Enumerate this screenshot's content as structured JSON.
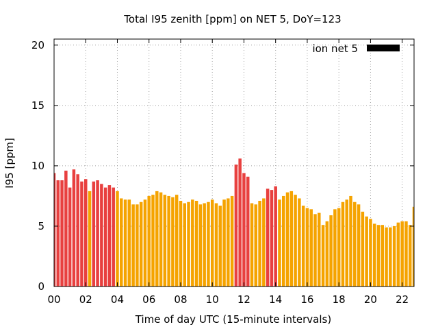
{
  "chart_data": {
    "type": "bar",
    "title": "Total I95 zenith [ppm] on NET 5, DoY=123",
    "xlabel": "Time of day UTC (15-minute intervals)",
    "ylabel": "I95 [ppm]",
    "xlim": [
      0,
      22.75
    ],
    "ylim": [
      0,
      20.5
    ],
    "x_ticks": [
      {
        "value": 0,
        "label": "00"
      },
      {
        "value": 2,
        "label": "02"
      },
      {
        "value": 4,
        "label": "04"
      },
      {
        "value": 6,
        "label": "06"
      },
      {
        "value": 8,
        "label": "08"
      },
      {
        "value": 10,
        "label": "10"
      },
      {
        "value": 12,
        "label": "12"
      },
      {
        "value": 14,
        "label": "14"
      },
      {
        "value": 16,
        "label": "16"
      },
      {
        "value": 18,
        "label": "18"
      },
      {
        "value": 20,
        "label": "20"
      },
      {
        "value": 22,
        "label": "22"
      }
    ],
    "y_ticks": [
      {
        "value": 0,
        "label": "0"
      },
      {
        "value": 5,
        "label": "5"
      },
      {
        "value": 10,
        "label": "10"
      },
      {
        "value": 15,
        "label": "15"
      },
      {
        "value": 20,
        "label": "20"
      }
    ],
    "grid": true,
    "legend": {
      "label": "ion net 5",
      "placement": "top-right",
      "color": "#000000"
    },
    "colors": {
      "high": "#e8403f",
      "normal": "#f5a300"
    },
    "bar_interval_hours": 0.25,
    "values": [
      9.4,
      8.8,
      8.8,
      9.6,
      8.2,
      9.7,
      9.3,
      8.7,
      8.9,
      7.9,
      8.7,
      8.8,
      8.5,
      8.2,
      8.4,
      8.2,
      7.9,
      7.3,
      7.2,
      7.2,
      6.8,
      6.8,
      7.0,
      7.2,
      7.5,
      7.6,
      7.9,
      7.8,
      7.6,
      7.5,
      7.4,
      7.6,
      7.1,
      6.9,
      7.0,
      7.2,
      7.1,
      6.8,
      6.9,
      7.0,
      7.2,
      6.9,
      6.7,
      7.2,
      7.3,
      7.5,
      10.1,
      10.6,
      9.4,
      9.1,
      6.9,
      6.8,
      7.1,
      7.3,
      8.1,
      8.0,
      8.3,
      7.2,
      7.5,
      7.8,
      7.9,
      7.6,
      7.3,
      6.7,
      6.5,
      6.4,
      6.0,
      6.1,
      5.1,
      5.4,
      5.9,
      6.4,
      6.5,
      7.0,
      7.2,
      7.5,
      7.0,
      6.8,
      6.2,
      5.8,
      5.6,
      5.2,
      5.1,
      5.1,
      4.9,
      4.9,
      5.0,
      5.3,
      5.4,
      5.4,
      5.1,
      6.6
    ],
    "status": [
      "high",
      "high",
      "high",
      "high",
      "high",
      "high",
      "high",
      "high",
      "high",
      "normal",
      "high",
      "high",
      "high",
      "high",
      "high",
      "high",
      "normal",
      "normal",
      "normal",
      "normal",
      "normal",
      "normal",
      "normal",
      "normal",
      "normal",
      "normal",
      "normal",
      "normal",
      "normal",
      "normal",
      "normal",
      "normal",
      "normal",
      "normal",
      "normal",
      "normal",
      "normal",
      "normal",
      "normal",
      "normal",
      "normal",
      "normal",
      "normal",
      "normal",
      "normal",
      "normal",
      "high",
      "high",
      "high",
      "high",
      "normal",
      "normal",
      "normal",
      "normal",
      "high",
      "high",
      "high",
      "normal",
      "normal",
      "normal",
      "normal",
      "normal",
      "normal",
      "normal",
      "normal",
      "normal",
      "normal",
      "normal",
      "normal",
      "normal",
      "normal",
      "normal",
      "normal",
      "normal",
      "normal",
      "normal",
      "normal",
      "normal",
      "normal",
      "normal",
      "normal",
      "normal",
      "normal",
      "normal",
      "normal",
      "normal",
      "normal",
      "normal",
      "normal",
      "normal",
      "normal",
      "normal"
    ]
  }
}
